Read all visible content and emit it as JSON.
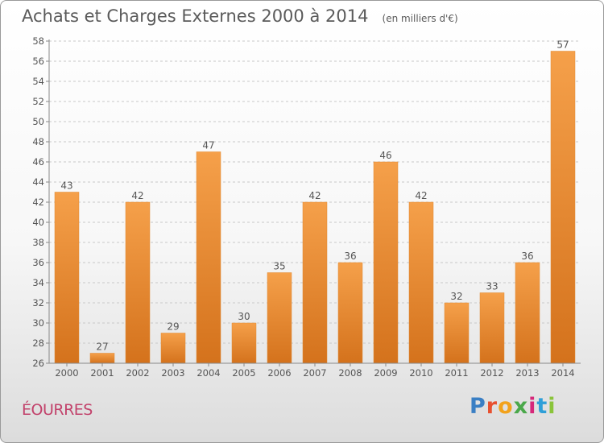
{
  "title": "Achats et Charges Externes 2000 à 2014",
  "unit": "(en milliers d'€)",
  "place": "ÉOURRES",
  "logo": {
    "text": "Proxiti",
    "letter_colors": [
      "#3a7fc4",
      "#e8502f",
      "#f2a21c",
      "#4aa84a",
      "#d6287a",
      "#2f9fd8",
      "#8ac43a"
    ]
  },
  "colors": {
    "bar_light": "#f5a04a",
    "bar_dark": "#d4721c",
    "axis": "#888888",
    "grid": "#c8c8c8",
    "text": "#555555"
  },
  "chart_data": {
    "type": "bar",
    "categories": [
      "2000",
      "2001",
      "2002",
      "2003",
      "2004",
      "2005",
      "2006",
      "2007",
      "2008",
      "2009",
      "2010",
      "2011",
      "2012",
      "2013",
      "2014"
    ],
    "values": [
      43,
      27,
      42,
      29,
      47,
      30,
      35,
      42,
      36,
      46,
      42,
      32,
      33,
      36,
      57
    ],
    "ylim": [
      26,
      58
    ],
    "yticks": [
      26,
      28,
      30,
      32,
      34,
      36,
      38,
      40,
      42,
      44,
      46,
      48,
      50,
      52,
      54,
      56,
      58
    ],
    "grid": "horizontal dashed",
    "data_labels": true
  }
}
